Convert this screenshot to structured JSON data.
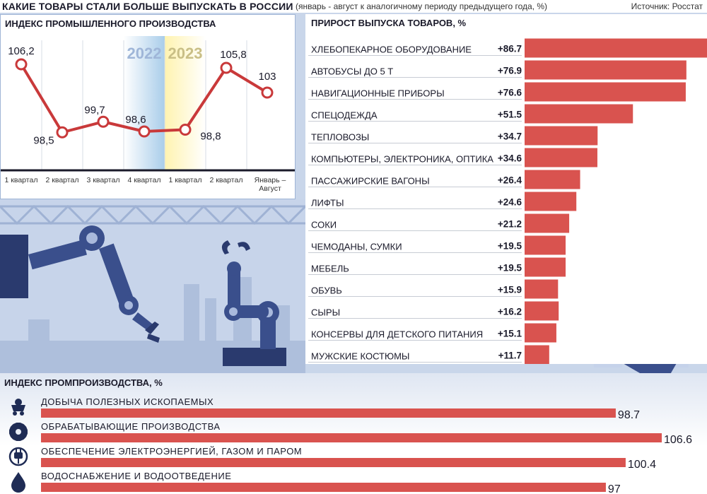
{
  "header": {
    "title": "КАКИЕ ТОВАРЫ  СТАЛИ БОЛЬШЕ ВЫПУСКАТЬ В РОССИИ",
    "subtitle": "(январь - август к аналогичному периоду предыдущего года, %)",
    "source": "Источник: Росстат"
  },
  "colors": {
    "accent": "#d9534f",
    "line": "#c9393a",
    "navy": "#1f2c55"
  },
  "chart_data": [
    {
      "type": "line",
      "title": "ИНДЕКС ПРОМЫШЛЕННОГО ПРОИЗВОДСТВА",
      "year_labels": [
        "2022",
        "2023"
      ],
      "categories": [
        "1 квартал",
        "2 квартал",
        "3 квартал",
        "4 квартал",
        "1 квартал",
        "2 квартал",
        "Январь – Август"
      ],
      "values": [
        106.2,
        98.5,
        99.7,
        98.6,
        98.8,
        105.8,
        103
      ],
      "value_labels": [
        "106,2",
        "98,5",
        "99,7",
        "98,6",
        "98,8",
        "105,8",
        "103"
      ],
      "grid": true
    },
    {
      "type": "bar",
      "orientation": "horizontal",
      "title": "ПРИРОСТ ВЫПУСКА ТОВАРОВ, %",
      "categories": [
        "ХЛЕБОПЕКАРНОЕ ОБОРУДОВАНИЕ",
        "АВТОБУСЫ ДО 5 Т",
        "НАВИГАЦИОННЫЕ ПРИБОРЫ",
        "СПЕЦОДЕЖДА",
        "ТЕПЛОВОЗЫ",
        "КОМПЬЮТЕРЫ, ЭЛЕКТРОНИКА, ОПТИКА",
        "ПАССАЖИРСКИЕ ВАГОНЫ",
        "ЛИФТЫ",
        "СОКИ",
        "ЧЕМОДАНЫ, СУМКИ",
        "МЕБЕЛЬ",
        "ОБУВЬ",
        "СЫРЫ",
        "КОНСЕРВЫ ДЛЯ ДЕТСКОГО ПИТАНИЯ",
        "МУЖСКИЕ КОСТЮМЫ"
      ],
      "values": [
        86.7,
        76.9,
        76.6,
        51.5,
        34.7,
        34.6,
        26.4,
        24.6,
        21.2,
        19.5,
        19.5,
        15.9,
        16.2,
        15.1,
        11.7
      ],
      "value_labels": [
        "+86.7",
        "+76.9",
        "+76.6",
        "+51.5",
        "+34.7",
        "+34.6",
        "+26.4",
        "+24.6",
        "+21.2",
        "+19.5",
        "+19.5",
        "+15.9",
        "+16.2",
        "+15.1",
        "+11.7"
      ]
    },
    {
      "type": "bar",
      "orientation": "horizontal",
      "title": "ИНДЕКС ПРОМПРОИЗВОДСТВА, %",
      "categories": [
        "ДОБЫЧА ПОЛЕЗНЫХ ИСКОПАЕМЫХ",
        "ОБРАБАТЫВАЮЩИЕ ПРОИЗВОДСТВА",
        "ОБЕСПЕЧЕНИЕ ЭЛЕКТРОЭНЕРГИЕЙ, ГАЗОМ И ПАРОМ",
        "ВОДОСНАБЖЕНИЕ И ВОДООТВЕДЕНИЕ"
      ],
      "icons": [
        "mine-cart-icon",
        "gear-icon",
        "plug-icon",
        "water-drop-icon"
      ],
      "values": [
        98.7,
        106.6,
        100.4,
        97
      ],
      "value_labels": [
        "98.7",
        "106.6",
        "100.4",
        "97"
      ]
    }
  ]
}
